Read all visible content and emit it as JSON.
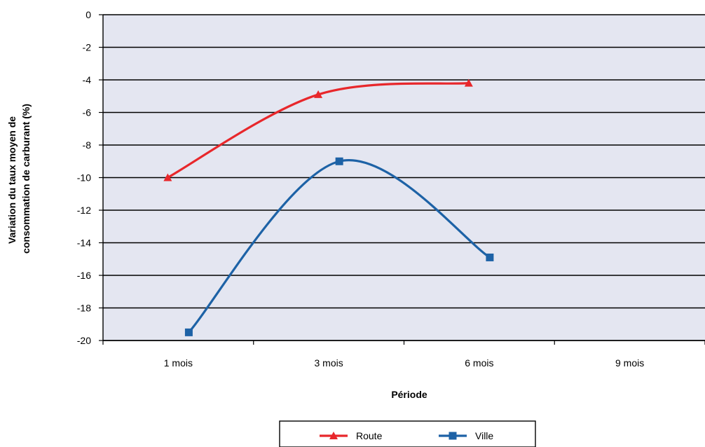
{
  "chart_data": {
    "type": "line",
    "title": "",
    "xlabel": "Période",
    "ylabel_lines": [
      "Variation du taux moyen de",
      "consommation de carburant (%)"
    ],
    "categories": [
      "1 mois",
      "3 mois",
      "6 mois",
      "9 mois"
    ],
    "ylim": [
      -20,
      0
    ],
    "yticks": [
      "0",
      "-2",
      "-4",
      "-6",
      "-8",
      "-10",
      "-12",
      "-14",
      "-16",
      "-18",
      "-20"
    ],
    "ytick_values": [
      0,
      -2,
      -4,
      -6,
      -8,
      -10,
      -12,
      -14,
      -16,
      -18,
      -20
    ],
    "grid": true,
    "smooth": true,
    "legend_position": "bottom",
    "plot_background": "#e4e6f1",
    "series": [
      {
        "name": "Route",
        "color": "#e8272b",
        "marker": "triangle",
        "points": [
          {
            "category": "1 mois",
            "value": -10.0
          },
          {
            "category": "3 mois",
            "value": -4.9
          },
          {
            "category": "6 mois",
            "value": -4.2
          }
        ]
      },
      {
        "name": "Ville",
        "color": "#1d62a6",
        "marker": "square",
        "points": [
          {
            "category": "1 mois",
            "value": -19.5
          },
          {
            "category": "3 mois",
            "value": -9.0
          },
          {
            "category": "6 mois",
            "value": -14.9
          }
        ]
      }
    ]
  }
}
